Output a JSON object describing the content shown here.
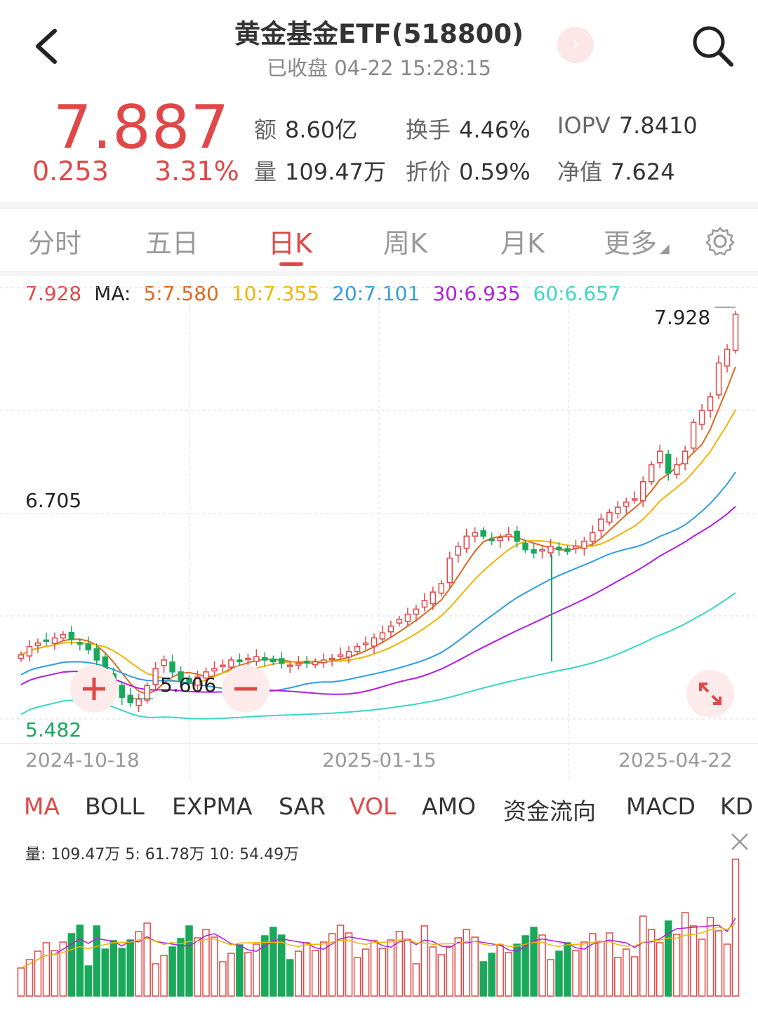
{
  "header": {
    "title": "黄金基金ETF(518800)",
    "subtitle": "已收盘 04-22 15:28:15",
    "next_glyph": "›"
  },
  "quote": {
    "price": "7.887",
    "change": "0.253",
    "change_pct": "3.31%",
    "stats": [
      {
        "label": "额",
        "value": "8.60亿"
      },
      {
        "label": "换手",
        "value": "4.46%"
      },
      {
        "label": "IOPV",
        "value": "7.8410"
      },
      {
        "label": "量",
        "value": "109.47万"
      },
      {
        "label": "折价",
        "value": "0.59%"
      },
      {
        "label": "净值",
        "value": "7.624"
      }
    ]
  },
  "tabs": [
    "分时",
    "五日",
    "日K",
    "周K",
    "月K",
    "更多"
  ],
  "active_tab": "日K",
  "ma_legend": {
    "price": "7.928",
    "label": "MA:",
    "items": [
      {
        "text": "5:7.580",
        "color": "#e0671e"
      },
      {
        "text": "10:7.355",
        "color": "#f0b400"
      },
      {
        "text": "20:7.101",
        "color": "#2e9ee0"
      },
      {
        "text": "30:6.935",
        "color": "#b01ee0"
      },
      {
        "text": "60:6.657",
        "color": "#3ad6c6"
      }
    ]
  },
  "colors": {
    "up": "#e04848",
    "down": "#1aa85a",
    "grid": "#dcdcdc"
  },
  "chart_labels": {
    "high": "7.928",
    "mid": "6.705",
    "low_marker": "5.606",
    "bottom": "5.482",
    "dates": [
      "2024-10-18",
      "2025-01-15",
      "2025-04-22"
    ]
  },
  "indicator_tabs": [
    "MA",
    "BOLL",
    "EXPMA",
    "SAR",
    "VOL",
    "AMO",
    "资金流向",
    "MACD",
    "KD"
  ],
  "active_indicators": [
    "MA",
    "VOL"
  ],
  "volume_legend": {
    "text": "量: 109.47万  5: 61.78万  10: 54.49万"
  },
  "chart_data": {
    "type": "candlestick",
    "ylim": [
      5.482,
      7.928
    ],
    "x_labels": [
      "2024-10-18",
      "2025-01-15",
      "2025-04-22"
    ],
    "series_note": "approximate daily close path",
    "close": [
      5.88,
      5.93,
      5.95,
      5.96,
      5.98,
      6.0,
      5.97,
      5.95,
      5.91,
      5.85,
      5.78,
      5.7,
      5.63,
      5.6,
      5.62,
      5.7,
      5.8,
      5.85,
      5.78,
      5.73,
      5.72,
      5.75,
      5.78,
      5.8,
      5.82,
      5.85,
      5.84,
      5.86,
      5.87,
      5.85,
      5.84,
      5.83,
      5.82,
      5.83,
      5.84,
      5.84,
      5.85,
      5.86,
      5.88,
      5.9,
      5.93,
      5.95,
      5.98,
      6.01,
      6.05,
      6.09,
      6.12,
      6.15,
      6.2,
      6.25,
      6.3,
      6.45,
      6.52,
      6.58,
      6.6,
      6.58,
      6.56,
      6.57,
      6.59,
      6.55,
      6.5,
      6.48,
      6.5,
      6.52,
      6.5,
      6.49,
      6.52,
      6.55,
      6.6,
      6.68,
      6.72,
      6.75,
      6.78,
      6.8,
      6.9,
      7.0,
      7.08,
      6.95,
      7.0,
      7.08,
      7.25,
      7.32,
      7.4,
      7.6,
      7.68,
      7.887
    ]
  }
}
